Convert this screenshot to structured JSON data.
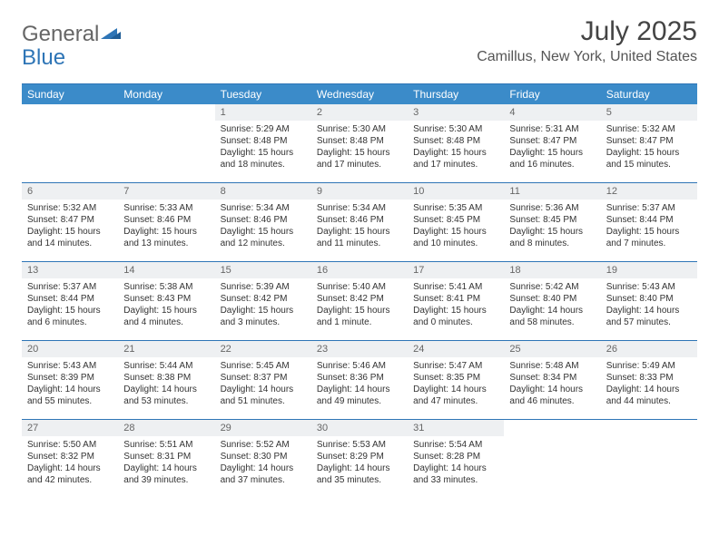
{
  "logo": {
    "part1": "General",
    "part2": "Blue"
  },
  "title": "July 2025",
  "subtitle": "Camillus, New York, United States",
  "colors": {
    "header_bg": "#3b8bc9",
    "rule": "#2e75b6",
    "daynum_bg": "#eef0f2",
    "text": "#333333"
  },
  "weekdays": [
    "Sunday",
    "Monday",
    "Tuesday",
    "Wednesday",
    "Thursday",
    "Friday",
    "Saturday"
  ],
  "leading_blanks": 2,
  "days": [
    {
      "n": 1,
      "sr": "5:29 AM",
      "ss": "8:48 PM",
      "dl": "15 hours and 18 minutes."
    },
    {
      "n": 2,
      "sr": "5:30 AM",
      "ss": "8:48 PM",
      "dl": "15 hours and 17 minutes."
    },
    {
      "n": 3,
      "sr": "5:30 AM",
      "ss": "8:48 PM",
      "dl": "15 hours and 17 minutes."
    },
    {
      "n": 4,
      "sr": "5:31 AM",
      "ss": "8:47 PM",
      "dl": "15 hours and 16 minutes."
    },
    {
      "n": 5,
      "sr": "5:32 AM",
      "ss": "8:47 PM",
      "dl": "15 hours and 15 minutes."
    },
    {
      "n": 6,
      "sr": "5:32 AM",
      "ss": "8:47 PM",
      "dl": "15 hours and 14 minutes."
    },
    {
      "n": 7,
      "sr": "5:33 AM",
      "ss": "8:46 PM",
      "dl": "15 hours and 13 minutes."
    },
    {
      "n": 8,
      "sr": "5:34 AM",
      "ss": "8:46 PM",
      "dl": "15 hours and 12 minutes."
    },
    {
      "n": 9,
      "sr": "5:34 AM",
      "ss": "8:46 PM",
      "dl": "15 hours and 11 minutes."
    },
    {
      "n": 10,
      "sr": "5:35 AM",
      "ss": "8:45 PM",
      "dl": "15 hours and 10 minutes."
    },
    {
      "n": 11,
      "sr": "5:36 AM",
      "ss": "8:45 PM",
      "dl": "15 hours and 8 minutes."
    },
    {
      "n": 12,
      "sr": "5:37 AM",
      "ss": "8:44 PM",
      "dl": "15 hours and 7 minutes."
    },
    {
      "n": 13,
      "sr": "5:37 AM",
      "ss": "8:44 PM",
      "dl": "15 hours and 6 minutes."
    },
    {
      "n": 14,
      "sr": "5:38 AM",
      "ss": "8:43 PM",
      "dl": "15 hours and 4 minutes."
    },
    {
      "n": 15,
      "sr": "5:39 AM",
      "ss": "8:42 PM",
      "dl": "15 hours and 3 minutes."
    },
    {
      "n": 16,
      "sr": "5:40 AM",
      "ss": "8:42 PM",
      "dl": "15 hours and 1 minute."
    },
    {
      "n": 17,
      "sr": "5:41 AM",
      "ss": "8:41 PM",
      "dl": "15 hours and 0 minutes."
    },
    {
      "n": 18,
      "sr": "5:42 AM",
      "ss": "8:40 PM",
      "dl": "14 hours and 58 minutes."
    },
    {
      "n": 19,
      "sr": "5:43 AM",
      "ss": "8:40 PM",
      "dl": "14 hours and 57 minutes."
    },
    {
      "n": 20,
      "sr": "5:43 AM",
      "ss": "8:39 PM",
      "dl": "14 hours and 55 minutes."
    },
    {
      "n": 21,
      "sr": "5:44 AM",
      "ss": "8:38 PM",
      "dl": "14 hours and 53 minutes."
    },
    {
      "n": 22,
      "sr": "5:45 AM",
      "ss": "8:37 PM",
      "dl": "14 hours and 51 minutes."
    },
    {
      "n": 23,
      "sr": "5:46 AM",
      "ss": "8:36 PM",
      "dl": "14 hours and 49 minutes."
    },
    {
      "n": 24,
      "sr": "5:47 AM",
      "ss": "8:35 PM",
      "dl": "14 hours and 47 minutes."
    },
    {
      "n": 25,
      "sr": "5:48 AM",
      "ss": "8:34 PM",
      "dl": "14 hours and 46 minutes."
    },
    {
      "n": 26,
      "sr": "5:49 AM",
      "ss": "8:33 PM",
      "dl": "14 hours and 44 minutes."
    },
    {
      "n": 27,
      "sr": "5:50 AM",
      "ss": "8:32 PM",
      "dl": "14 hours and 42 minutes."
    },
    {
      "n": 28,
      "sr": "5:51 AM",
      "ss": "8:31 PM",
      "dl": "14 hours and 39 minutes."
    },
    {
      "n": 29,
      "sr": "5:52 AM",
      "ss": "8:30 PM",
      "dl": "14 hours and 37 minutes."
    },
    {
      "n": 30,
      "sr": "5:53 AM",
      "ss": "8:29 PM",
      "dl": "14 hours and 35 minutes."
    },
    {
      "n": 31,
      "sr": "5:54 AM",
      "ss": "8:28 PM",
      "dl": "14 hours and 33 minutes."
    }
  ]
}
